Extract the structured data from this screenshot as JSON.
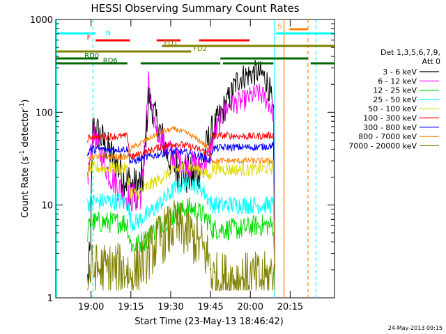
{
  "chart_data": {
    "type": "line",
    "title": "HESSI Observing Summary Count Rates",
    "xlabel": "Start Time (23-May-13 18:46:42)",
    "ylabel_main": "Count Rate (s",
    "ylabel_sup1": "-1",
    "ylabel_mid": " detector",
    "ylabel_sup2": "-1",
    "ylabel_end": ")",
    "yscale": "log",
    "ylim": [
      1,
      1000
    ],
    "xlim_minutes": [
      0,
      105
    ],
    "x_ticks": [
      {
        "label": "19:00",
        "minute": 13.3
      },
      {
        "label": "19:15",
        "minute": 28.3
      },
      {
        "label": "19:30",
        "minute": 43.3
      },
      {
        "label": "19:45",
        "minute": 58.3
      },
      {
        "label": "20:00",
        "minute": 73.3
      },
      {
        "label": "20:15",
        "minute": 88.3
      }
    ],
    "y_ticks": [
      {
        "label": "1",
        "value": 1
      },
      {
        "label": "10",
        "value": 10
      },
      {
        "label": "100",
        "value": 100
      },
      {
        "label": "1000",
        "value": 1000
      }
    ],
    "legend": {
      "title_line1": "Det 1,3,5,6,7,9,",
      "title_line2": "Att 0",
      "placement": "right",
      "entries": [
        {
          "label": "3 - 6 keV",
          "color": "#000000"
        },
        {
          "label": "6 - 12 keV",
          "color": "#ff00ff"
        },
        {
          "label": "12 - 25 keV",
          "color": "#00dd00"
        },
        {
          "label": "25 - 50 keV",
          "color": "#00ffff"
        },
        {
          "label": "50 - 100 keV",
          "color": "#dddd00"
        },
        {
          "label": "100 - 300 keV",
          "color": "#ff0000"
        },
        {
          "label": "300 - 800 keV",
          "color": "#0000ff"
        },
        {
          "label": "800 - 7000 keV",
          "color": "#ff8000"
        },
        {
          "label": "7000 - 20000 keV",
          "color": "#808000"
        }
      ]
    },
    "gaps_minutes": [
      [
        0,
        12
      ],
      [
        83,
        105
      ]
    ],
    "series": [
      {
        "color": "#000000",
        "noise": 0.25,
        "x": [
          12,
          13,
          14,
          16,
          18,
          20,
          22,
          24,
          26,
          28,
          29,
          30,
          32,
          33,
          34,
          35,
          36,
          38,
          40,
          42,
          44,
          46,
          48,
          50,
          52,
          54,
          55,
          56,
          58,
          60,
          62,
          64,
          66,
          67,
          68,
          69,
          70,
          72,
          74,
          76,
          78,
          79,
          80,
          81,
          82,
          82.5
        ],
        "y": [
          1.5,
          3,
          70,
          60,
          48,
          38,
          30,
          24,
          20,
          17,
          16,
          15,
          17,
          20,
          60,
          150,
          120,
          80,
          55,
          35,
          28,
          25,
          22,
          20,
          20,
          24,
          30,
          35,
          55,
          70,
          90,
          120,
          150,
          180,
          210,
          230,
          240,
          250,
          260,
          270,
          250,
          230,
          200,
          150,
          80,
          2
        ]
      },
      {
        "color": "#ff00ff",
        "noise": 0.18,
        "x": [
          12,
          13,
          14,
          16,
          18,
          20,
          22,
          24,
          26,
          28,
          30,
          32,
          33,
          34,
          35,
          36,
          38,
          40,
          42,
          44,
          46,
          48,
          50,
          52,
          54,
          56,
          58,
          60,
          62,
          64,
          66,
          68,
          70,
          72,
          74,
          76,
          78,
          80,
          82,
          82.5
        ],
        "y": [
          20,
          30,
          60,
          40,
          30,
          22,
          18,
          15,
          13,
          12,
          12,
          13,
          20,
          80,
          220,
          100,
          70,
          50,
          40,
          35,
          32,
          30,
          28,
          27,
          26,
          28,
          35,
          60,
          80,
          110,
          120,
          125,
          130,
          140,
          150,
          160,
          150,
          130,
          100,
          3
        ]
      },
      {
        "color": "#00dd00",
        "noise": 0.12,
        "x": [
          12,
          13,
          15,
          20,
          25,
          27,
          28,
          29,
          30,
          35,
          40,
          45,
          50,
          55,
          58,
          59,
          60,
          65,
          70,
          75,
          80,
          82,
          82.5
        ],
        "y": [
          5,
          6.5,
          6.5,
          6.5,
          6.5,
          6.3,
          4.0,
          3.6,
          3.6,
          4.5,
          6.5,
          8,
          9.5,
          8,
          6.5,
          5.5,
          5.5,
          5.5,
          5.5,
          6,
          6,
          6,
          2
        ]
      },
      {
        "color": "#00ffff",
        "noise": 0.1,
        "x": [
          12,
          13,
          15,
          20,
          25,
          27,
          28,
          29,
          30,
          35,
          40,
          45,
          50,
          55,
          58,
          59,
          60,
          65,
          70,
          75,
          80,
          82,
          82.5
        ],
        "y": [
          10,
          11,
          11,
          11,
          11,
          10.5,
          7,
          6.5,
          6.5,
          8,
          11,
          15,
          18,
          15,
          11,
          10,
          10,
          10,
          10,
          10,
          10,
          10,
          2
        ]
      },
      {
        "color": "#dddd00",
        "noise": 0.08,
        "x": [
          12,
          13,
          15,
          20,
          25,
          27,
          28,
          29,
          30,
          35,
          40,
          45,
          50,
          55,
          58,
          59,
          60,
          65,
          70,
          75,
          80,
          82,
          82.5
        ],
        "y": [
          22,
          25,
          25,
          25,
          25,
          24,
          14,
          13,
          13,
          16,
          20,
          24,
          26,
          24,
          20,
          25,
          25,
          24,
          24,
          24,
          25,
          25,
          2
        ]
      },
      {
        "color": "#ff0000",
        "noise": 0.05,
        "x": [
          12,
          13,
          15,
          20,
          25,
          27,
          28,
          29,
          30,
          35,
          40,
          45,
          50,
          55,
          58,
          59,
          60,
          65,
          70,
          75,
          80,
          82,
          82.5
        ],
        "y": [
          50,
          55,
          55,
          55,
          55,
          55,
          34,
          33,
          34,
          38,
          43,
          46,
          43,
          39,
          36,
          55,
          56,
          56,
          55,
          55,
          56,
          57,
          2
        ]
      },
      {
        "color": "#0000ff",
        "noise": 0.05,
        "x": [
          12,
          13,
          15,
          20,
          25,
          27,
          28,
          29,
          30,
          35,
          40,
          45,
          50,
          55,
          58,
          59,
          60,
          65,
          70,
          75,
          80,
          82,
          82.5
        ],
        "y": [
          35,
          40,
          40,
          40,
          40,
          40,
          30,
          29,
          30,
          33,
          36,
          38,
          36,
          33,
          30,
          40,
          41,
          42,
          42,
          42,
          43,
          44,
          2
        ]
      },
      {
        "color": "#ff8000",
        "noise": 0.04,
        "x": [
          12,
          13,
          15,
          20,
          25,
          27,
          28,
          30,
          35,
          40,
          45,
          50,
          55,
          58,
          59,
          60,
          65,
          70,
          75,
          80,
          82,
          82.5
        ],
        "y": [
          30,
          33,
          33,
          33,
          33,
          33,
          40,
          43,
          52,
          62,
          66,
          58,
          48,
          38,
          30,
          30,
          30,
          30,
          30,
          30,
          30,
          2
        ]
      },
      {
        "color": "#808000",
        "noise": 0.3,
        "floor": 1.2,
        "x": [
          12,
          13,
          15,
          20,
          25,
          27,
          28,
          30,
          35,
          40,
          45,
          50,
          55,
          58,
          59,
          60,
          65,
          70,
          75,
          80,
          82,
          82.5
        ],
        "y": [
          1.3,
          2,
          2,
          2,
          2,
          2,
          1.6,
          2,
          3,
          4.5,
          6,
          5,
          3.5,
          2.5,
          1.6,
          1.6,
          1.6,
          1.6,
          1.6,
          1.6,
          2,
          1.2
        ]
      }
    ],
    "flag_bars": [
      {
        "label": "N",
        "label_color": "#00ffff",
        "label_minute": 18,
        "label_side": "right",
        "color": "#00ffff",
        "row": 0,
        "segments": [
          [
            0,
            15
          ],
          [
            83,
            105
          ]
        ]
      },
      {
        "label": "S",
        "label_color": "#ff8000",
        "label_minute": 86,
        "label_side": "left",
        "color": "#ff8000",
        "row": 1,
        "segments": [
          [
            88,
            95
          ]
        ]
      },
      {
        "label": "F",
        "label_color": "#ff0000",
        "label_minute": 14,
        "label_side": "left",
        "color": "#ff0000",
        "row": 2,
        "segments": [
          [
            15,
            28
          ],
          [
            38,
            47
          ],
          [
            54,
            73
          ]
        ]
      },
      {
        "label": "FD1",
        "label_color": "#808000",
        "label_minute": 40,
        "label_side": "right",
        "color": "#808000",
        "row": 3,
        "segments": [
          [
            40,
            105
          ]
        ]
      },
      {
        "label": "FD2",
        "label_color": "#808000",
        "label_minute": 51,
        "label_side": "right",
        "color": "#808000",
        "row": 4,
        "segments": [
          [
            0,
            51
          ]
        ]
      },
      {
        "label": "RD0",
        "label_color": "#006600",
        "label_minute": 10,
        "label_side": "right",
        "color": "#006600",
        "row": 5,
        "segments": [
          [
            0,
            16
          ],
          [
            62,
            95
          ]
        ]
      },
      {
        "label": "RD6",
        "label_color": "#006600",
        "label_minute": 17,
        "label_side": "right",
        "color": "#006600",
        "row": 6,
        "segments": [
          [
            0,
            27
          ],
          [
            32,
            62
          ],
          [
            63,
            82
          ],
          [
            96,
            105
          ]
        ]
      }
    ],
    "vlines": [
      {
        "minute": 14,
        "color": "#00ffff",
        "style": "dashed"
      },
      {
        "minute": 82.5,
        "color": "#00ffff",
        "style": "solid"
      },
      {
        "minute": 86,
        "color": "#ff8000",
        "style": "solid"
      },
      {
        "minute": 95,
        "color": "#ff8000",
        "style": "dashed"
      },
      {
        "minute": 98,
        "color": "#00ffff",
        "style": "dashed"
      }
    ],
    "timestamp": "24-May-2013 09:15"
  }
}
